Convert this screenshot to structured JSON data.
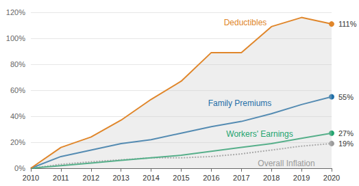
{
  "chart_data": {
    "type": "line",
    "categories": [
      "2010",
      "2011",
      "2012",
      "2013",
      "2014",
      "2015",
      "2016",
      "2017",
      "2018",
      "2019",
      "2020"
    ],
    "series": [
      {
        "name": "Deductibles",
        "color": "#e0862a",
        "line_style": "solid",
        "marker": "circle",
        "values": [
          0,
          16,
          24,
          37,
          53,
          67,
          89,
          89,
          109,
          116,
          111
        ],
        "value_labels": [
          null,
          null,
          null,
          null,
          null,
          null,
          null,
          null,
          null,
          null,
          "111%"
        ]
      },
      {
        "name": "Family Premiums",
        "color": "#1f6fa8",
        "line_style": "solid",
        "marker": "circle",
        "values": [
          0,
          9,
          14,
          19,
          22,
          27,
          32,
          36,
          42,
          49,
          55
        ],
        "value_labels": [
          null,
          null,
          null,
          null,
          null,
          null,
          null,
          null,
          null,
          null,
          "55%"
        ]
      },
      {
        "name": "Workers' Earnings",
        "color": "#22a46e",
        "line_style": "solid",
        "marker": "circle",
        "values": [
          0,
          2,
          4,
          6,
          8,
          10,
          13,
          16,
          19,
          23,
          27
        ],
        "value_labels": [
          null,
          null,
          null,
          null,
          null,
          null,
          null,
          null,
          null,
          null,
          "27%"
        ]
      },
      {
        "name": "Overall Inflation",
        "color": "#9a9a9a",
        "line_style": "dotted",
        "marker": "circle",
        "values": [
          0,
          3,
          5,
          6.5,
          8,
          8,
          9,
          11,
          14,
          17,
          19
        ],
        "value_labels": [
          null,
          null,
          null,
          null,
          null,
          null,
          null,
          null,
          null,
          null,
          "19%"
        ]
      }
    ],
    "ylim": [
      0,
      120
    ],
    "yticks": [
      {
        "value": 0,
        "label": "0%"
      },
      {
        "value": 20,
        "label": "20%"
      },
      {
        "value": 40,
        "label": "40%"
      },
      {
        "value": 60,
        "label": "60%"
      },
      {
        "value": 80,
        "label": "80%"
      },
      {
        "value": 100,
        "label": "100%"
      },
      {
        "value": 120,
        "label": "120%"
      }
    ],
    "grid": true,
    "data_labels": true,
    "legend": "none"
  }
}
